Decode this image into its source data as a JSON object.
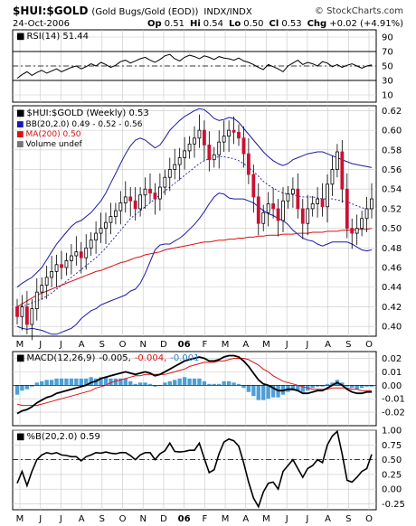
{
  "header": {
    "symbol": "$HUI:$GOLD",
    "name": "(Gold Bugs/Gold (EOD))",
    "exchange": "INDX/INDX",
    "credit": "© StockCharts.com",
    "date": "24-Oct-2006",
    "open_label": "Op",
    "open": "0.51",
    "high_label": "Hi",
    "high": "0.54",
    "low_label": "Lo",
    "low": "0.50",
    "close_label": "Cl",
    "close": "0.53",
    "change_label": "Chg",
    "change": "+0.02 (+4.91%)"
  },
  "colors": {
    "up": "#000000",
    "down": "#cc1133",
    "bb": "#1a1aaa",
    "ma": "#dd1111",
    "hist": "#4d9fd6",
    "grid": "#c8c8c8"
  },
  "chart_data": [
    {
      "type": "line",
      "panel": "rsi",
      "legend": "RSI(14) 51.44",
      "yticks": [
        90,
        70,
        50,
        30,
        10
      ],
      "ylim": [
        0,
        100
      ],
      "levels": [
        70,
        50,
        30
      ],
      "series": [
        {
          "values": [
            33,
            38,
            42,
            37,
            41,
            44,
            40,
            43,
            46,
            42,
            45,
            48,
            50,
            46,
            49,
            53,
            50,
            55,
            52,
            48,
            51,
            56,
            58,
            54,
            57,
            60,
            62,
            58,
            55,
            59,
            64,
            66,
            60,
            57,
            62,
            65,
            63,
            60,
            64,
            62,
            59,
            63,
            61,
            60,
            58,
            61,
            57,
            55,
            52,
            48,
            45,
            52,
            49,
            46,
            42,
            50,
            54,
            58,
            52,
            55,
            53,
            50,
            56,
            54,
            49,
            52,
            48,
            51,
            53,
            50,
            47,
            50,
            51.44
          ]
        }
      ]
    },
    {
      "type": "candlestick",
      "panel": "price",
      "legend": "$HUI:$GOLD (Weekly) 0.53",
      "legend_entries": [
        "BB(20,2.0) 0.49 - 0.52 - 0.56",
        "MA(200) 0.50",
        "Volume undef"
      ],
      "ylim": [
        0.39,
        0.625
      ],
      "yticks": [
        0.62,
        0.6,
        0.58,
        0.56,
        0.54,
        0.52,
        0.5,
        0.48,
        0.46,
        0.44,
        0.42,
        0.4
      ],
      "xlabels": [
        "M",
        "J",
        "J",
        "A",
        "S",
        "O",
        "N",
        "D",
        "06",
        "F",
        "M",
        "A",
        "M",
        "J",
        "J",
        "A",
        "S",
        "O"
      ],
      "close": [
        0.41,
        0.42,
        0.402,
        0.418,
        0.435,
        0.442,
        0.45,
        0.456,
        0.463,
        0.46,
        0.467,
        0.472,
        0.476,
        0.47,
        0.48,
        0.488,
        0.495,
        0.5,
        0.506,
        0.512,
        0.518,
        0.526,
        0.532,
        0.528,
        0.52,
        0.534,
        0.54,
        0.536,
        0.53,
        0.542,
        0.552,
        0.56,
        0.565,
        0.572,
        0.579,
        0.586,
        0.592,
        0.6,
        0.585,
        0.57,
        0.575,
        0.588,
        0.594,
        0.6,
        0.598,
        0.592,
        0.576,
        0.555,
        0.532,
        0.505,
        0.516,
        0.525,
        0.52,
        0.508,
        0.528,
        0.535,
        0.54,
        0.52,
        0.505,
        0.52,
        0.525,
        0.53,
        0.522,
        0.545,
        0.56,
        0.578,
        0.54,
        0.5,
        0.495,
        0.5,
        0.51,
        0.52,
        0.53
      ],
      "bb_upper": [
        0.44,
        0.444,
        0.447,
        0.45,
        0.455,
        0.46,
        0.468,
        0.476,
        0.484,
        0.49,
        0.496,
        0.502,
        0.506,
        0.508,
        0.512,
        0.516,
        0.522,
        0.528,
        0.536,
        0.546,
        0.556,
        0.566,
        0.576,
        0.584,
        0.59,
        0.592,
        0.59,
        0.586,
        0.582,
        0.585,
        0.592,
        0.6,
        0.605,
        0.61,
        0.614,
        0.617,
        0.62,
        0.622,
        0.621,
        0.617,
        0.612,
        0.61,
        0.611,
        0.613,
        0.612,
        0.608,
        0.602,
        0.596,
        0.59,
        0.584,
        0.578,
        0.573,
        0.569,
        0.566,
        0.564,
        0.566,
        0.57,
        0.572,
        0.574,
        0.576,
        0.577,
        0.578,
        0.578,
        0.576,
        0.574,
        0.572,
        0.57,
        0.568,
        0.566,
        0.565,
        0.564,
        0.563,
        0.562
      ],
      "bb_middle": [
        0.42,
        0.421,
        0.422,
        0.424,
        0.426,
        0.428,
        0.431,
        0.434,
        0.438,
        0.442,
        0.446,
        0.45,
        0.454,
        0.458,
        0.462,
        0.466,
        0.47,
        0.475,
        0.48,
        0.486,
        0.492,
        0.498,
        0.504,
        0.51,
        0.514,
        0.518,
        0.522,
        0.526,
        0.53,
        0.534,
        0.538,
        0.542,
        0.546,
        0.55,
        0.554,
        0.558,
        0.562,
        0.566,
        0.569,
        0.571,
        0.572,
        0.573,
        0.573,
        0.572,
        0.571,
        0.569,
        0.566,
        0.562,
        0.558,
        0.553,
        0.548,
        0.544,
        0.541,
        0.538,
        0.536,
        0.535,
        0.534,
        0.533,
        0.532,
        0.532,
        0.532,
        0.531,
        0.53,
        0.53,
        0.53,
        0.529,
        0.528,
        0.527,
        0.525,
        0.523,
        0.521,
        0.52,
        0.52
      ],
      "bb_lower": [
        0.4,
        0.398,
        0.397,
        0.398,
        0.397,
        0.396,
        0.394,
        0.392,
        0.392,
        0.394,
        0.396,
        0.398,
        0.402,
        0.408,
        0.412,
        0.416,
        0.418,
        0.422,
        0.424,
        0.426,
        0.428,
        0.43,
        0.432,
        0.436,
        0.438,
        0.444,
        0.454,
        0.466,
        0.478,
        0.483,
        0.484,
        0.484,
        0.487,
        0.49,
        0.494,
        0.499,
        0.504,
        0.51,
        0.517,
        0.525,
        0.532,
        0.536,
        0.535,
        0.531,
        0.53,
        0.53,
        0.53,
        0.528,
        0.526,
        0.522,
        0.518,
        0.515,
        0.513,
        0.51,
        0.508,
        0.504,
        0.498,
        0.494,
        0.49,
        0.488,
        0.487,
        0.484,
        0.482,
        0.484,
        0.486,
        0.486,
        0.486,
        0.486,
        0.484,
        0.481,
        0.478,
        0.477,
        0.478
      ],
      "ma200": [
        0.42,
        0.423,
        0.426,
        0.429,
        0.432,
        0.434,
        0.436,
        0.438,
        0.44,
        0.442,
        0.444,
        0.446,
        0.448,
        0.45,
        0.452,
        0.454,
        0.456,
        0.457,
        0.459,
        0.461,
        0.463,
        0.465,
        0.466,
        0.468,
        0.47,
        0.471,
        0.473,
        0.474,
        0.475,
        0.476,
        0.478,
        0.479,
        0.48,
        0.481,
        0.482,
        0.483,
        0.484,
        0.485,
        0.486,
        0.486,
        0.487,
        0.488,
        0.488,
        0.489,
        0.489,
        0.49,
        0.49,
        0.491,
        0.491,
        0.492,
        0.492,
        0.493,
        0.493,
        0.493,
        0.494,
        0.494,
        0.494,
        0.495,
        0.495,
        0.495,
        0.496,
        0.496,
        0.496,
        0.497,
        0.497,
        0.497,
        0.498,
        0.498,
        0.498,
        0.499,
        0.499,
        0.499,
        0.5
      ]
    },
    {
      "type": "line+bar",
      "panel": "macd",
      "legend_prefix": "MACD(12,26,9)",
      "legend_macd": "-0.005,",
      "legend_signal": "-0.004,",
      "legend_hist": "-0.001",
      "ylim": [
        -0.03,
        0.025
      ],
      "yticks": [
        0.02,
        0.01,
        0.0,
        -0.01,
        -0.02
      ],
      "macd": [
        -0.021,
        -0.019,
        -0.018,
        -0.016,
        -0.013,
        -0.011,
        -0.009,
        -0.008,
        -0.006,
        -0.005,
        -0.004,
        -0.003,
        -0.002,
        -0.001,
        0.0,
        0.002,
        0.003,
        0.005,
        0.006,
        0.007,
        0.008,
        0.009,
        0.01,
        0.009,
        0.008,
        0.009,
        0.01,
        0.009,
        0.007,
        0.008,
        0.01,
        0.012,
        0.014,
        0.016,
        0.018,
        0.019,
        0.02,
        0.021,
        0.02,
        0.018,
        0.018,
        0.019,
        0.021,
        0.022,
        0.022,
        0.021,
        0.018,
        0.014,
        0.009,
        0.004,
        0.001,
        0.0,
        -0.002,
        -0.004,
        -0.004,
        -0.003,
        -0.003,
        -0.004,
        -0.006,
        -0.006,
        -0.005,
        -0.004,
        -0.004,
        -0.002,
        0.0,
        0.002,
        0.0,
        -0.003,
        -0.005,
        -0.006,
        -0.006,
        -0.005,
        -0.005
      ],
      "signal": [
        -0.014,
        -0.015,
        -0.015,
        -0.015,
        -0.015,
        -0.014,
        -0.013,
        -0.012,
        -0.011,
        -0.01,
        -0.009,
        -0.008,
        -0.007,
        -0.006,
        -0.005,
        -0.004,
        -0.002,
        -0.001,
        0.0,
        0.002,
        0.003,
        0.004,
        0.005,
        0.006,
        0.007,
        0.007,
        0.008,
        0.008,
        0.008,
        0.008,
        0.008,
        0.009,
        0.01,
        0.011,
        0.012,
        0.014,
        0.015,
        0.016,
        0.017,
        0.017,
        0.017,
        0.018,
        0.018,
        0.019,
        0.02,
        0.02,
        0.02,
        0.019,
        0.017,
        0.015,
        0.012,
        0.01,
        0.007,
        0.005,
        0.003,
        0.002,
        0.001,
        0.0,
        -0.001,
        -0.002,
        -0.003,
        -0.003,
        -0.003,
        -0.003,
        -0.002,
        -0.002,
        -0.002,
        -0.002,
        -0.003,
        -0.003,
        -0.004,
        -0.004,
        -0.004
      ]
    },
    {
      "type": "line",
      "panel": "pctb",
      "legend": "%B(20,2.0) 0.59",
      "ylim": [
        -0.35,
        1.0
      ],
      "yticks": [
        1.0,
        0.75,
        0.5,
        0.25,
        0.0,
        -0.25
      ],
      "level": 0.5,
      "values": [
        0.1,
        0.3,
        0.06,
        0.3,
        0.5,
        0.58,
        0.62,
        0.6,
        0.62,
        0.58,
        0.57,
        0.55,
        0.55,
        0.48,
        0.55,
        0.58,
        0.62,
        0.61,
        0.63,
        0.61,
        0.6,
        0.62,
        0.62,
        0.57,
        0.5,
        0.58,
        0.62,
        0.62,
        0.5,
        0.6,
        0.65,
        0.78,
        0.64,
        0.63,
        0.64,
        0.66,
        0.66,
        0.78,
        0.52,
        0.28,
        0.33,
        0.6,
        0.8,
        0.85,
        0.82,
        0.73,
        0.45,
        0.12,
        -0.15,
        -0.3,
        -0.05,
        0.1,
        0.12,
        0.0,
        0.3,
        0.4,
        0.5,
        0.35,
        0.2,
        0.35,
        0.4,
        0.5,
        0.45,
        0.75,
        0.9,
        0.98,
        0.6,
        0.15,
        0.12,
        0.2,
        0.3,
        0.35,
        0.59
      ]
    }
  ]
}
